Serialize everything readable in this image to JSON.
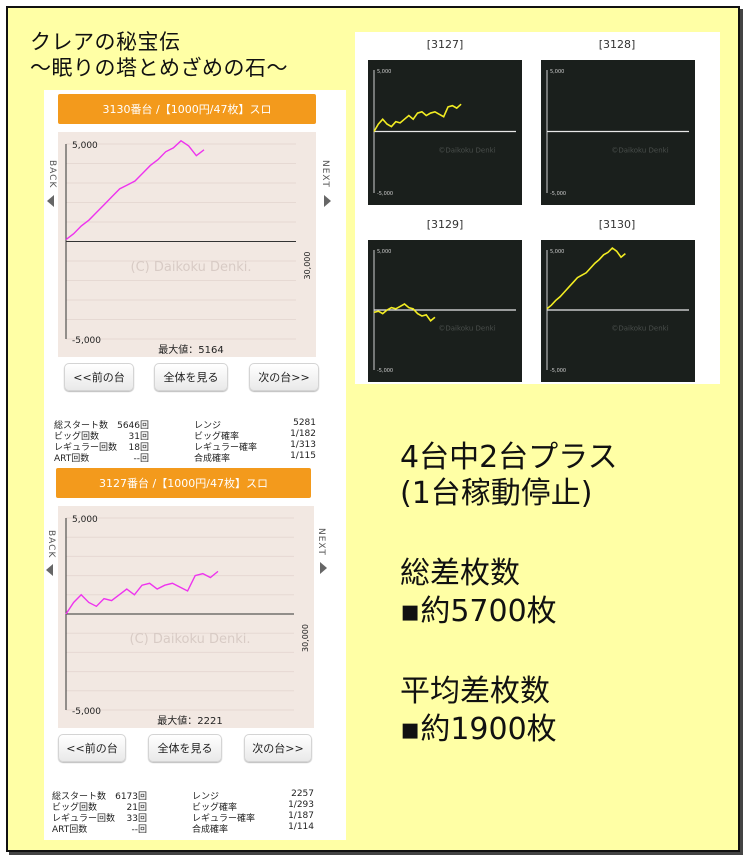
{
  "title": {
    "line1": "クレアの秘宝伝",
    "line2": "〜眠りの塔とめざめの石〜"
  },
  "panels": [
    {
      "header": "3130番台 /【1000円/47枚】スロ",
      "side_back": "BACK",
      "side_next": "NEXT",
      "xmax_label": "30,000",
      "watermark": "(C) Daikoku Denki.",
      "max_value": "最大値：5164",
      "buttons": {
        "prev": "<<前の台",
        "all": "全体を見る",
        "next": "次の台>>"
      },
      "stats": [
        [
          "総スタート数",
          "5646回",
          "レンジ",
          "5281"
        ],
        [
          "ビッグ回数",
          "31回",
          "ビッグ確率",
          "1/182"
        ],
        [
          "レギュラー回数",
          "18回",
          "レギュラー確率",
          "1/313"
        ],
        [
          "ART回数",
          "--回",
          "合成確率",
          "1/115"
        ]
      ],
      "chart_data": {
        "type": "line",
        "color": "#ee33ee",
        "x": [
          0,
          1000,
          2000,
          3000,
          4000,
          5000,
          6000,
          7000,
          8000,
          9000,
          10000,
          11000,
          12000,
          13000,
          14000,
          15000,
          16000,
          17000,
          18000
        ],
        "y": [
          100,
          400,
          800,
          1100,
          1500,
          1900,
          2300,
          2700,
          2900,
          3100,
          3500,
          3900,
          4200,
          4600,
          4800,
          5164,
          4900,
          4400,
          4700
        ],
        "ylim": [
          -5000,
          5000
        ],
        "xlim": [
          0,
          30000
        ],
        "ytick_labels": [
          "5,000",
          "-5,000"
        ]
      }
    },
    {
      "header": "3127番台 /【1000円/47枚】スロ",
      "side_back": "BACK",
      "side_next": "NEXT",
      "xmax_label": "30,000",
      "watermark": "(C) Daikoku Denki.",
      "max_value": "最大値：2221",
      "buttons": {
        "prev": "<<前の台",
        "all": "全体を見る",
        "next": "次の台>>"
      },
      "stats": [
        [
          "総スタート数",
          "6173回",
          "レンジ",
          "2257"
        ],
        [
          "ビッグ回数",
          "21回",
          "ビッグ確率",
          "1/293"
        ],
        [
          "レギュラー回数",
          "33回",
          "レギュラー確率",
          "1/187"
        ],
        [
          "ART回数",
          "--回",
          "合成確率",
          "1/114"
        ]
      ],
      "chart_data": {
        "type": "line",
        "color": "#ee33ee",
        "x": [
          0,
          1000,
          2000,
          3000,
          4000,
          5000,
          6000,
          7000,
          8000,
          9000,
          10000,
          11000,
          12000,
          13000,
          14000,
          15000,
          16000,
          17000,
          18000,
          19000,
          20000
        ],
        "y": [
          0,
          600,
          1000,
          600,
          400,
          800,
          700,
          1000,
          1300,
          1000,
          1500,
          1600,
          1300,
          1500,
          1600,
          1400,
          1200,
          2000,
          2100,
          1900,
          2221
        ],
        "ylim": [
          -5000,
          5000
        ],
        "xlim": [
          0,
          30000
        ],
        "ytick_labels": [
          "5,000",
          "-5,000"
        ]
      }
    }
  ],
  "mini_charts": [
    {
      "label": "[3127]",
      "ytop": "5,000",
      "ybottom": "-5,000",
      "watermark": "©Daikoku Denki",
      "chart_data": {
        "type": "line",
        "x": [
          0,
          1,
          2,
          3,
          4,
          5,
          6,
          7,
          8,
          9,
          10,
          11,
          12,
          13,
          14,
          15,
          16,
          17,
          18,
          19,
          20
        ],
        "y": [
          0,
          600,
          1000,
          600,
          400,
          800,
          700,
          1000,
          1300,
          1000,
          1500,
          1600,
          1300,
          1500,
          1600,
          1400,
          1200,
          2000,
          2100,
          1900,
          2221
        ],
        "ylim": [
          -5000,
          5000
        ]
      }
    },
    {
      "label": "[3128]",
      "ytop": "5,000",
      "ybottom": "-5,000",
      "watermark": "©Daikoku Denki",
      "chart_data": {
        "type": "line",
        "x": [],
        "y": [],
        "ylim": [
          -5000,
          5000
        ]
      }
    },
    {
      "label": "[3129]",
      "ytop": "5,000",
      "ybottom": "-5,000",
      "watermark": "©Daikoku Denki",
      "chart_data": {
        "type": "line",
        "x": [
          0,
          1,
          2,
          3,
          4,
          5,
          6,
          7,
          8,
          9,
          10,
          11,
          12,
          13,
          14
        ],
        "y": [
          -200,
          -100,
          -300,
          0,
          200,
          100,
          300,
          500,
          200,
          100,
          -300,
          -500,
          -400,
          -900,
          -600
        ],
        "ylim": [
          -5000,
          5000
        ]
      }
    },
    {
      "label": "[3130]",
      "ytop": "5,000",
      "ybottom": "-5,000",
      "watermark": "©Daikoku Denki",
      "chart_data": {
        "type": "line",
        "x": [
          0,
          1,
          2,
          3,
          4,
          5,
          6,
          7,
          8,
          9,
          10,
          11,
          12,
          13,
          14,
          15,
          16,
          17,
          18
        ],
        "y": [
          100,
          400,
          800,
          1100,
          1500,
          1900,
          2300,
          2700,
          2900,
          3100,
          3500,
          3900,
          4200,
          4600,
          4800,
          5164,
          4900,
          4400,
          4700
        ],
        "ylim": [
          -5000,
          5000
        ]
      }
    }
  ],
  "summary": {
    "line1": "4台中2台プラス",
    "line2": "(1台稼動停止)",
    "line3": "総差枚数",
    "line4": "▪約5700枚",
    "line5": "平均差枚数",
    "line6": "▪約1900枚"
  }
}
